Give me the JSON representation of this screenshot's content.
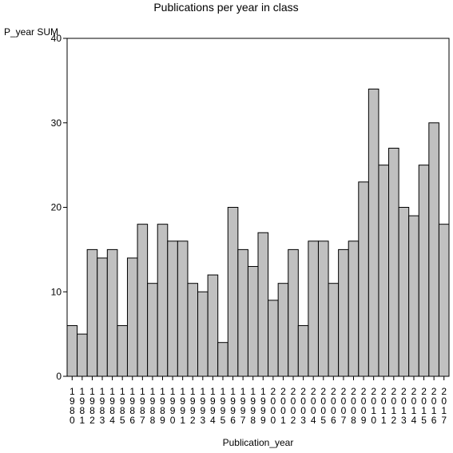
{
  "chart_data": {
    "type": "bar",
    "title": "Publications per year in class",
    "xlabel": "Publication_year",
    "ylabel": "P_year SUM",
    "ylim": [
      0,
      40
    ],
    "yticks": [
      0,
      10,
      20,
      30,
      40
    ],
    "grid": false,
    "bar_color": "#c0c0c0",
    "categories": [
      "1980",
      "1981",
      "1982",
      "1983",
      "1984",
      "1985",
      "1986",
      "1987",
      "1988",
      "1989",
      "1990",
      "1991",
      "1992",
      "1993",
      "1994",
      "1995",
      "1996",
      "1997",
      "1998",
      "1999",
      "2000",
      "2001",
      "2002",
      "2003",
      "2004",
      "2005",
      "2006",
      "2007",
      "2008",
      "2009",
      "2010",
      "2011",
      "2012",
      "2013",
      "2014",
      "2015",
      "2016",
      "2017"
    ],
    "values": [
      6,
      5,
      15,
      14,
      15,
      6,
      14,
      18,
      11,
      18,
      16,
      16,
      11,
      10,
      12,
      4,
      20,
      15,
      13,
      17,
      9,
      11,
      15,
      6,
      16,
      16,
      11,
      15,
      16,
      23,
      34,
      25,
      27,
      20,
      19,
      25,
      30,
      18
    ]
  }
}
